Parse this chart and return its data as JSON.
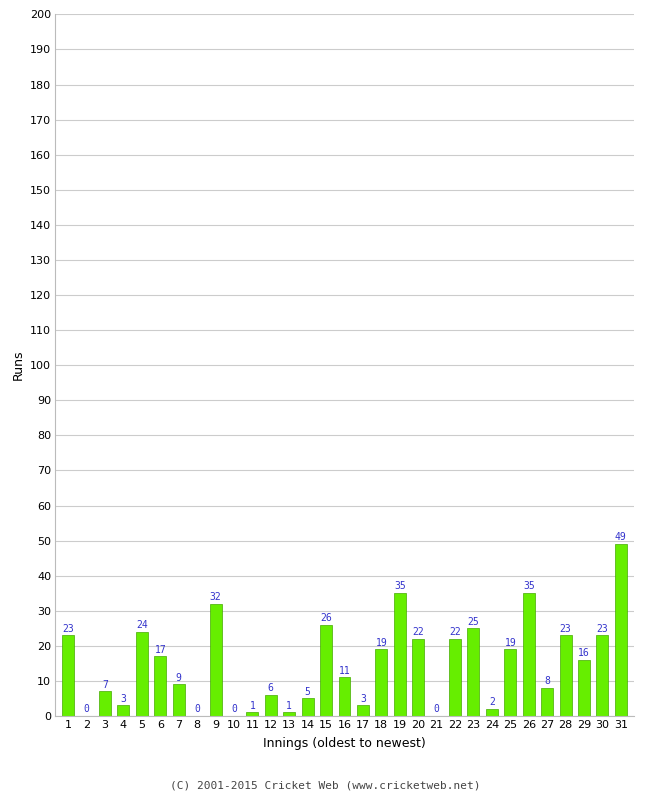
{
  "innings": [
    1,
    2,
    3,
    4,
    5,
    6,
    7,
    8,
    9,
    10,
    11,
    12,
    13,
    14,
    15,
    16,
    17,
    18,
    19,
    20,
    21,
    22,
    23,
    24,
    25,
    26,
    27,
    28,
    29,
    30,
    31
  ],
  "runs": [
    23,
    0,
    7,
    3,
    24,
    17,
    9,
    0,
    32,
    0,
    1,
    6,
    1,
    5,
    26,
    11,
    3,
    19,
    35,
    22,
    0,
    22,
    25,
    2,
    19,
    35,
    8,
    23,
    16,
    23,
    49
  ],
  "bar_color": "#66ee00",
  "bar_edge_color": "#44aa00",
  "label_color": "#3333cc",
  "ylabel": "Runs",
  "xlabel": "Innings (oldest to newest)",
  "ylim": [
    0,
    200
  ],
  "yticks": [
    0,
    10,
    20,
    30,
    40,
    50,
    60,
    70,
    80,
    90,
    100,
    110,
    120,
    130,
    140,
    150,
    160,
    170,
    180,
    190,
    200
  ],
  "footer": "(C) 2001-2015 Cricket Web (www.cricketweb.net)",
  "bg_color": "#ffffff",
  "grid_color": "#cccccc",
  "label_fontsize": 7,
  "axis_tick_fontsize": 8,
  "axis_label_fontsize": 9,
  "footer_fontsize": 8,
  "bar_width": 0.65
}
